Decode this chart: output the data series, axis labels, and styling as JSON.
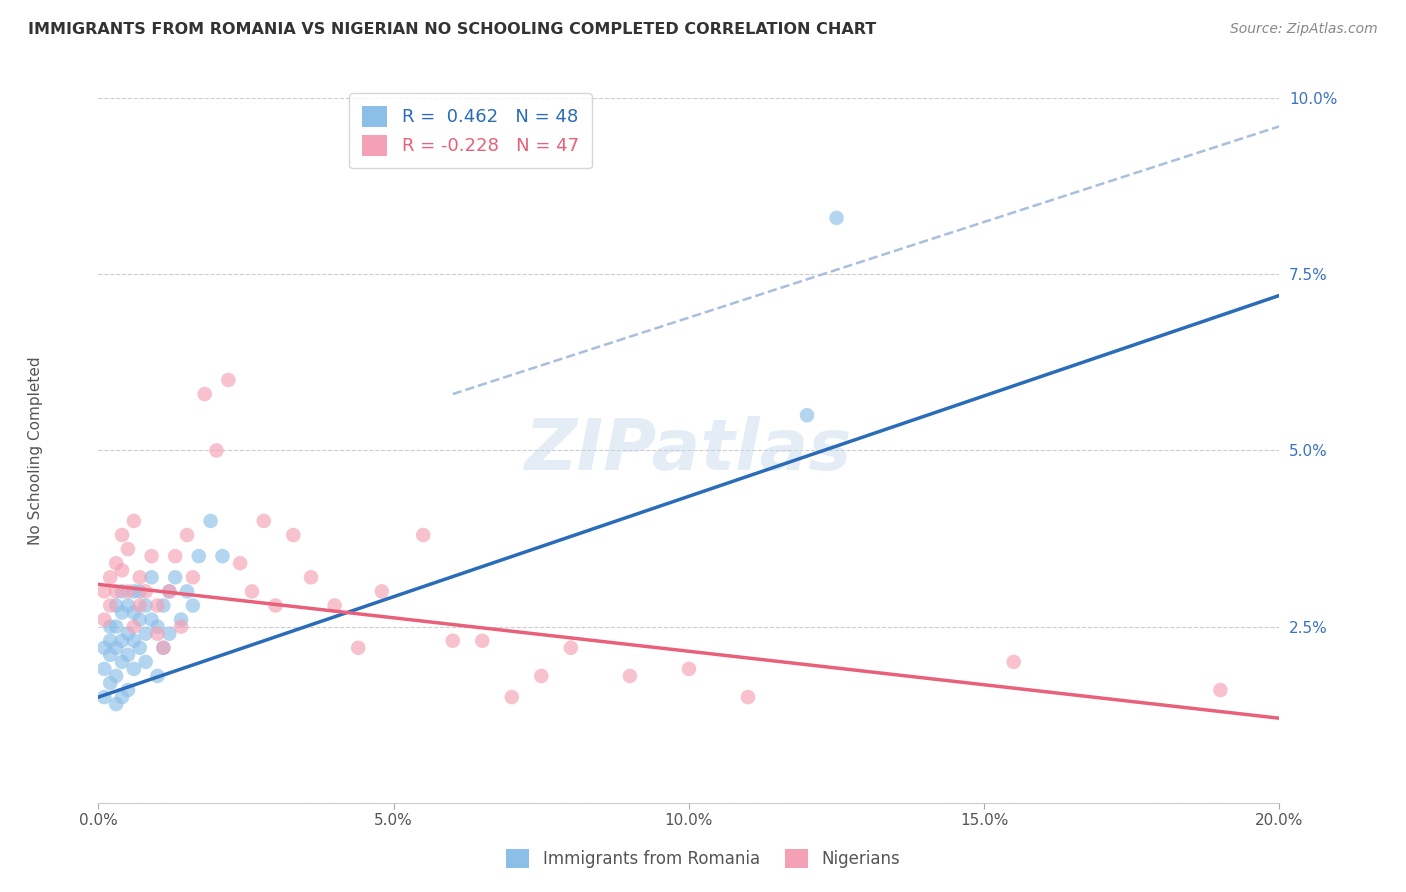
{
  "title": "IMMIGRANTS FROM ROMANIA VS NIGERIAN NO SCHOOLING COMPLETED CORRELATION CHART",
  "source": "Source: ZipAtlas.com",
  "ylabel": "No Schooling Completed",
  "xlim": [
    0.0,
    0.2
  ],
  "ylim": [
    0.0,
    0.1
  ],
  "xticks": [
    0.0,
    0.05,
    0.1,
    0.15,
    0.2
  ],
  "xtick_labels": [
    "0.0%",
    "5.0%",
    "10.0%",
    "15.0%",
    "20.0%"
  ],
  "yticks": [
    0.0,
    0.025,
    0.05,
    0.075,
    0.1
  ],
  "ytick_labels": [
    "",
    "2.5%",
    "5.0%",
    "7.5%",
    "10.0%"
  ],
  "romania_R": 0.462,
  "romania_N": 48,
  "nigeria_R": -0.228,
  "nigeria_N": 47,
  "romania_color": "#8BBFE8",
  "nigeria_color": "#F4A0B5",
  "romania_line_color": "#2B6CB8",
  "nigeria_line_color": "#E8607A",
  "dashed_line_color": "#AABEDD",
  "watermark": "ZIPatlas",
  "romania_line_x0": 0.0,
  "romania_line_y0": 0.015,
  "romania_line_x1": 0.2,
  "romania_line_y1": 0.072,
  "nigeria_line_x0": 0.0,
  "nigeria_line_y0": 0.031,
  "nigeria_line_x1": 0.2,
  "nigeria_line_y1": 0.012,
  "dashed_line_x0": 0.06,
  "dashed_line_y0": 0.058,
  "dashed_line_x1": 0.2,
  "dashed_line_y1": 0.096,
  "romania_points_x": [
    0.001,
    0.001,
    0.001,
    0.002,
    0.002,
    0.002,
    0.002,
    0.003,
    0.003,
    0.003,
    0.003,
    0.003,
    0.004,
    0.004,
    0.004,
    0.004,
    0.004,
    0.005,
    0.005,
    0.005,
    0.005,
    0.006,
    0.006,
    0.006,
    0.006,
    0.007,
    0.007,
    0.007,
    0.008,
    0.008,
    0.008,
    0.009,
    0.009,
    0.01,
    0.01,
    0.011,
    0.011,
    0.012,
    0.012,
    0.013,
    0.014,
    0.015,
    0.016,
    0.017,
    0.019,
    0.021,
    0.12,
    0.125
  ],
  "romania_points_y": [
    0.022,
    0.019,
    0.015,
    0.025,
    0.023,
    0.021,
    0.017,
    0.028,
    0.025,
    0.022,
    0.018,
    0.014,
    0.03,
    0.027,
    0.023,
    0.02,
    0.015,
    0.028,
    0.024,
    0.021,
    0.016,
    0.03,
    0.027,
    0.023,
    0.019,
    0.03,
    0.026,
    0.022,
    0.028,
    0.024,
    0.02,
    0.032,
    0.026,
    0.025,
    0.018,
    0.028,
    0.022,
    0.03,
    0.024,
    0.032,
    0.026,
    0.03,
    0.028,
    0.035,
    0.04,
    0.035,
    0.055,
    0.083
  ],
  "nigeria_points_x": [
    0.001,
    0.001,
    0.002,
    0.002,
    0.003,
    0.003,
    0.004,
    0.004,
    0.005,
    0.005,
    0.006,
    0.006,
    0.007,
    0.007,
    0.008,
    0.009,
    0.01,
    0.01,
    0.011,
    0.012,
    0.013,
    0.014,
    0.015,
    0.016,
    0.018,
    0.02,
    0.022,
    0.024,
    0.026,
    0.028,
    0.03,
    0.033,
    0.036,
    0.04,
    0.044,
    0.048,
    0.055,
    0.06,
    0.065,
    0.07,
    0.075,
    0.08,
    0.09,
    0.1,
    0.11,
    0.155,
    0.19
  ],
  "nigeria_points_y": [
    0.03,
    0.026,
    0.032,
    0.028,
    0.034,
    0.03,
    0.038,
    0.033,
    0.036,
    0.03,
    0.04,
    0.025,
    0.032,
    0.028,
    0.03,
    0.035,
    0.028,
    0.024,
    0.022,
    0.03,
    0.035,
    0.025,
    0.038,
    0.032,
    0.058,
    0.05,
    0.06,
    0.034,
    0.03,
    0.04,
    0.028,
    0.038,
    0.032,
    0.028,
    0.022,
    0.03,
    0.038,
    0.023,
    0.023,
    0.015,
    0.018,
    0.022,
    0.018,
    0.019,
    0.015,
    0.02,
    0.016
  ]
}
